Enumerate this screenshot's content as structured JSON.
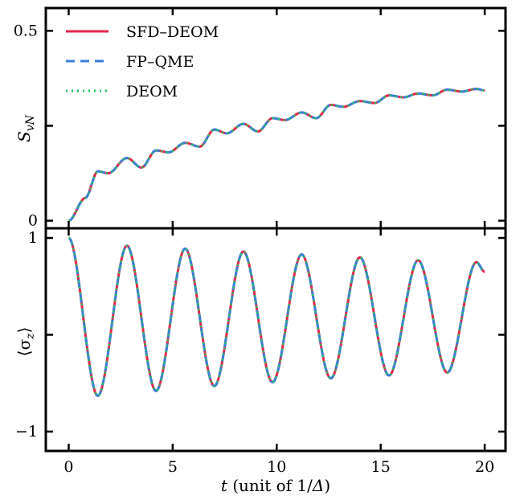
{
  "chart_data": [
    {
      "type": "line",
      "ylabel": "S_vN",
      "ylabel_main": "S",
      "ylabel_sub": "vN",
      "xlim": [
        -1.1,
        21.0
      ],
      "ylim": [
        -0.02,
        0.56
      ],
      "yticks": [
        0,
        0.25,
        0.5
      ],
      "yticklabels": [
        "0",
        "",
        "0.5"
      ],
      "legend": {
        "placement": "top-left",
        "entries": [
          {
            "name": "SFD–DEOM",
            "color": "#e8264e",
            "style": "solid"
          },
          {
            "name": "FP–QME",
            "color": "#3a7fdc",
            "style": "dashed"
          },
          {
            "name": "DEOM",
            "color": "#22c55e",
            "style": "dotted"
          }
        ]
      },
      "series": [
        {
          "name": "SFD–DEOM",
          "color": "#e8264e",
          "style": "solid",
          "model": "entropy"
        },
        {
          "name": "FP–QME",
          "color": "#3a7fdc",
          "style": "dashed",
          "model": "entropy"
        },
        {
          "name": "DEOM",
          "color": "#22c55e",
          "style": "dotted",
          "model": "entropy"
        }
      ],
      "curve_points": {
        "t": [
          0,
          0.8,
          1.4,
          1.9,
          2.8,
          3.5,
          4.2,
          4.8,
          5.6,
          6.3,
          7.0,
          7.6,
          8.4,
          9.1,
          9.8,
          10.4,
          11.2,
          11.9,
          12.6,
          13.2,
          14.0,
          14.7,
          15.4,
          16.1,
          16.8,
          17.5,
          18.2,
          18.9,
          19.6,
          20.0
        ],
        "value": [
          0,
          0.06,
          0.13,
          0.125,
          0.165,
          0.14,
          0.185,
          0.18,
          0.205,
          0.195,
          0.24,
          0.23,
          0.255,
          0.235,
          0.27,
          0.265,
          0.285,
          0.27,
          0.305,
          0.3,
          0.315,
          0.31,
          0.33,
          0.325,
          0.335,
          0.33,
          0.345,
          0.34,
          0.347,
          0.343
        ]
      }
    },
    {
      "type": "line",
      "ylabel": "⟨σz⟩",
      "ylabel_main": "⟨σ",
      "ylabel_sub": "z",
      "ylabel_close": "⟩",
      "xlabel": "t (unit of 1/Δ)",
      "xlabel_var": "t",
      "xlabel_rest": " (unit of 1/",
      "xlabel_delta": "Δ",
      "xlabel_close": ")",
      "xlim": [
        -1.1,
        21.0
      ],
      "ylim": [
        -1.2,
        1.1
      ],
      "xticks": [
        0,
        5,
        10,
        15,
        20
      ],
      "xticklabels": [
        "0",
        "5",
        "10",
        "15",
        "20"
      ],
      "yticks": [
        -1,
        0,
        1
      ],
      "yticklabels": [
        "−1",
        "",
        "1"
      ],
      "series": [
        {
          "name": "SFD–DEOM",
          "color": "#e8264e",
          "style": "solid",
          "model": "sigma"
        },
        {
          "name": "FP–QME",
          "color": "#3a7fdc",
          "style": "dashed",
          "model": "sigma"
        },
        {
          "name": "DEOM",
          "color": "#22c55e",
          "style": "dotted",
          "model": "sigma"
        }
      ],
      "oscillation": {
        "period": 2.8,
        "minima": [
          [
            1.4,
            -0.63
          ],
          [
            4.2,
            -0.58
          ],
          [
            7.0,
            -0.53
          ],
          [
            9.8,
            -0.49
          ],
          [
            12.6,
            -0.45
          ],
          [
            15.4,
            -0.42
          ],
          [
            18.2,
            -0.39
          ]
        ],
        "maxima": [
          [
            0,
            1.0
          ],
          [
            2.8,
            0.92
          ],
          [
            5.6,
            0.89
          ],
          [
            8.4,
            0.86
          ],
          [
            11.2,
            0.83
          ],
          [
            14.0,
            0.8
          ],
          [
            16.8,
            0.77
          ],
          [
            19.6,
            0.75
          ]
        ],
        "end": [
          20.0,
          0.65
        ]
      }
    }
  ]
}
